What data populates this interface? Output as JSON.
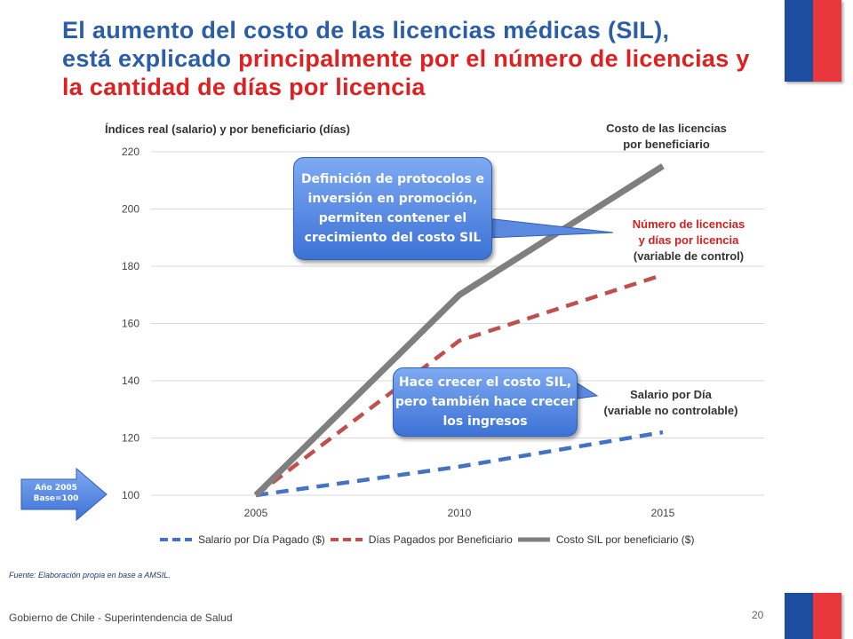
{
  "title": {
    "part1": "El aumento del costo de las licencias médicas (SIL),",
    "part2": "está explicado ",
    "part3": "principalmente por el número de licencias y la cantidad de días por licencia"
  },
  "chart_data": {
    "type": "line",
    "ylabel": "Índices real (salario) y por beneficiario (días)",
    "x": [
      2005,
      2010,
      2015
    ],
    "xticks": [
      "2005",
      "2010",
      "2015"
    ],
    "yticks": [
      100,
      120,
      140,
      160,
      180,
      200,
      220
    ],
    "ylim": [
      100,
      220
    ],
    "grid": true,
    "legend_position": "bottom",
    "series": [
      {
        "name": "Salario por Día Pagado ($)",
        "values": [
          100,
          110,
          122
        ],
        "color": "#4472c4",
        "style": "dashed"
      },
      {
        "name": "Días Pagados por Beneficiario",
        "values": [
          100,
          154,
          177
        ],
        "color": "#c0504d",
        "style": "dashed"
      },
      {
        "name": "Costo SIL por beneficiario ($)",
        "values": [
          100,
          170,
          215
        ],
        "color": "#7f7f7f",
        "style": "solid"
      }
    ],
    "annotations": {
      "cost": [
        "Costo de las licencias",
        "por beneficiario"
      ],
      "days": [
        "Número de licencias",
        "y días por licencia",
        "(variable de control)"
      ],
      "salary": [
        "Salario por Día",
        "(variable no controlable)"
      ]
    }
  },
  "callouts": {
    "protocol": "Definición de protocolos e inversión en promoción, permiten contener el crecimiento del costo SIL",
    "income": "Hace crecer el costo SIL, pero también hace crecer los ingresos"
  },
  "base_arrow": {
    "line1": "Año 2005",
    "line2": "Base=100"
  },
  "source": "Fuente: Elaboración propia en base a AMSIL.",
  "footer": "Gobierno de Chile - Superintendencia de Salud",
  "page_number": "20",
  "colors": {
    "title_blue": "#2b5ea7",
    "title_red": "#e02020",
    "flag_blue": "#1d4d9e",
    "flag_red": "#e8383d"
  }
}
